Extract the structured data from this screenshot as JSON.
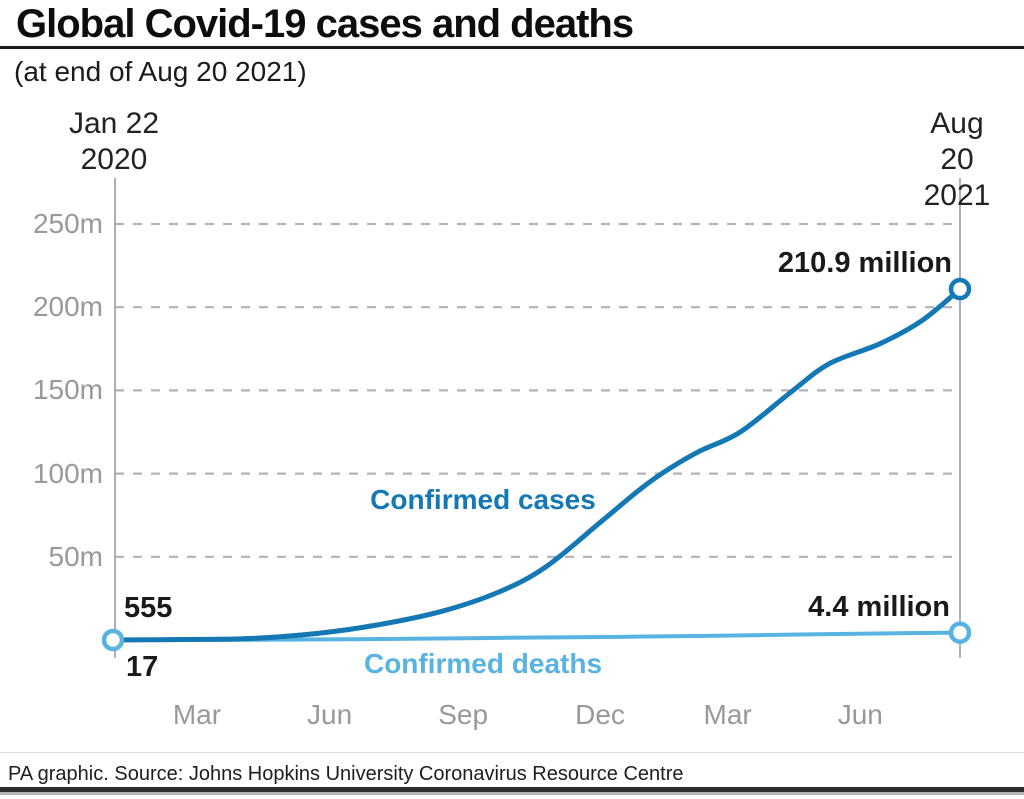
{
  "header": {
    "title": "Global Covid-19 cases and deaths",
    "subtitle": "(at end of Aug 20 2021)"
  },
  "footer": {
    "source": "PA graphic. Source: Johns Hopkins University Coronavirus Resource Centre"
  },
  "chart_data": {
    "type": "line",
    "title": "Global Covid-19 cases and deaths",
    "subtitle": "(at end of Aug 20 2021)",
    "x_range_labels": [
      "Jan 22 2020",
      "Aug 20 2021"
    ],
    "x_start_label": "Jan 22\n2020",
    "x_end_label": "Aug 20\n2021",
    "y_unit": "millions",
    "ylim": [
      0,
      250
    ],
    "grid": "horizontal dashed",
    "grid_color": "#b3b3b3",
    "axis_line_color": "#9c9c9c",
    "tick_text_color": "#97999b",
    "y_ticks": [
      {
        "label": "50m",
        "value": 50
      },
      {
        "label": "100m",
        "value": 100
      },
      {
        "label": "150m",
        "value": 150
      },
      {
        "label": "200m",
        "value": 200
      },
      {
        "label": "250m",
        "value": 250
      }
    ],
    "x_month_labels": [
      {
        "label": "Mar",
        "t": 0.097
      },
      {
        "label": "Jun",
        "t": 0.254
      },
      {
        "label": "Sep",
        "t": 0.412
      },
      {
        "label": "Dec",
        "t": 0.574
      },
      {
        "label": "Mar",
        "t": 0.725
      },
      {
        "label": "Jun",
        "t": 0.882
      }
    ],
    "start_marker_color": "#58b3e1",
    "series": [
      {
        "name": "Confirmed cases",
        "color": "#1478b4",
        "line_width": 5,
        "start_value": 555,
        "start_value_label": "555",
        "end_value_millions": 210.9,
        "end_value_label": "210.9 million",
        "points_t_millions": [
          [
            0,
            0.0006
          ],
          [
            0.08,
            0.3
          ],
          [
            0.16,
            0.9
          ],
          [
            0.24,
            4
          ],
          [
            0.31,
            9
          ],
          [
            0.385,
            17
          ],
          [
            0.455,
            29
          ],
          [
            0.51,
            44
          ],
          [
            0.575,
            71
          ],
          [
            0.62,
            90
          ],
          [
            0.65,
            101
          ],
          [
            0.69,
            113
          ],
          [
            0.74,
            125
          ],
          [
            0.8,
            149
          ],
          [
            0.845,
            166
          ],
          [
            0.905,
            178
          ],
          [
            0.955,
            192
          ],
          [
            1,
            210.9
          ]
        ]
      },
      {
        "name": "Confirmed deaths",
        "color": "#58b3e1",
        "line_width": 4,
        "start_value": 17,
        "start_value_label": "17",
        "end_value_millions": 4.4,
        "end_value_label": "4.4 million",
        "points_t_millions": [
          [
            0,
            2e-05
          ],
          [
            0.1,
            0.06
          ],
          [
            0.2,
            0.25
          ],
          [
            0.3,
            0.55
          ],
          [
            0.4,
            1.0
          ],
          [
            0.5,
            1.5
          ],
          [
            0.6,
            1.9
          ],
          [
            0.7,
            2.5
          ],
          [
            0.8,
            3.2
          ],
          [
            0.9,
            3.9
          ],
          [
            1,
            4.4
          ]
        ]
      }
    ]
  }
}
